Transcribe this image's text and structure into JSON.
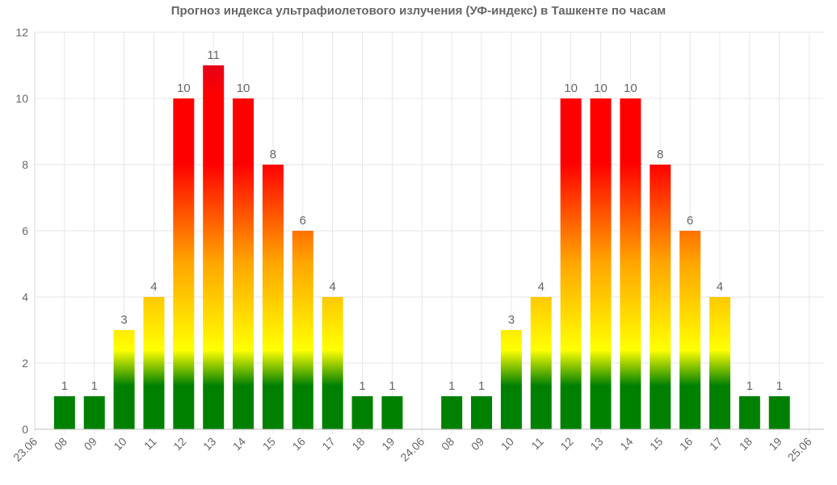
{
  "chart_data": {
    "type": "bar",
    "title": "Прогноз индекса ультрафиолетового излучения (УФ-индекс) в Ташкенте по часам",
    "xlabel": "",
    "ylabel": "",
    "ylim": [
      0,
      12
    ],
    "yticks": [
      "0",
      "2",
      "4",
      "6",
      "8",
      "10",
      "12"
    ],
    "grid": true,
    "categories": [
      "23.06",
      "08",
      "09",
      "10",
      "11",
      "12",
      "13",
      "14",
      "15",
      "16",
      "17",
      "18",
      "19",
      "24.06",
      "08",
      "09",
      "10",
      "11",
      "12",
      "13",
      "14",
      "15",
      "16",
      "17",
      "18",
      "19",
      "25.06"
    ],
    "values": [
      null,
      1,
      1,
      3,
      4,
      10,
      11,
      10,
      8,
      6,
      4,
      1,
      1,
      null,
      1,
      1,
      3,
      4,
      10,
      10,
      10,
      8,
      6,
      4,
      1,
      1,
      null
    ],
    "color_scale": {
      "low": "#008000",
      "mid": "#ffff00",
      "high": "#ff0000",
      "extreme": "#cc0033"
    }
  }
}
